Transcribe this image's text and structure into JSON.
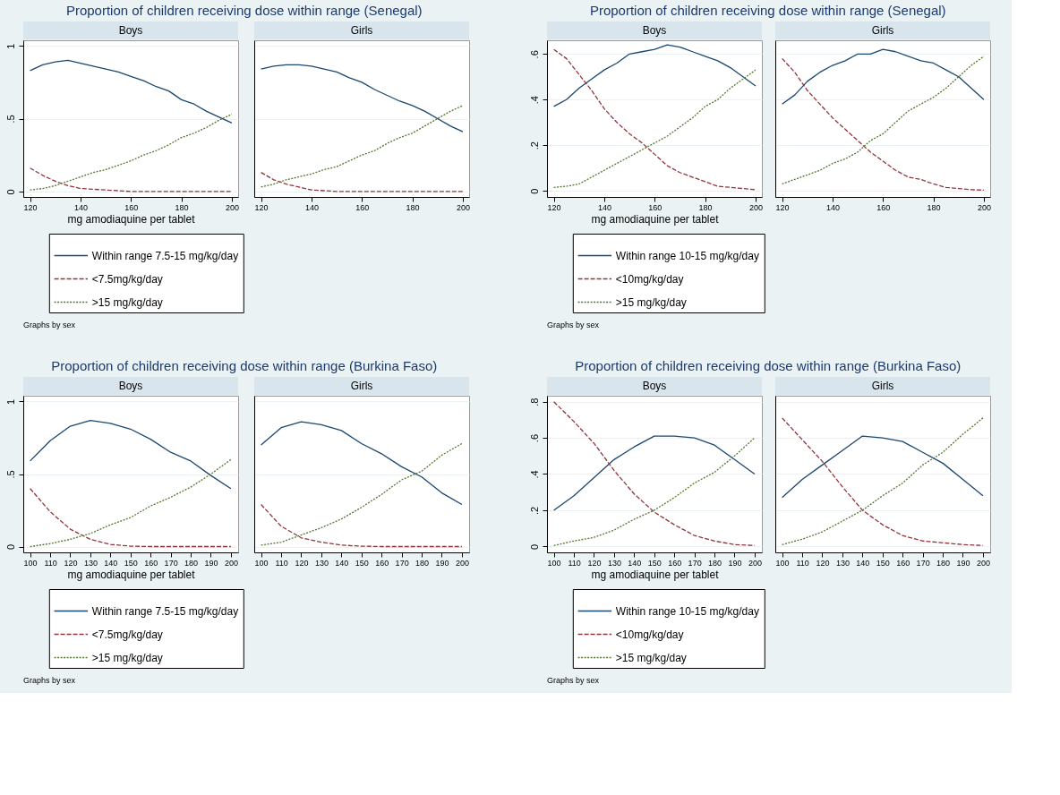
{
  "chart_data": [
    {
      "type": "line",
      "title": "Proportion of children receiving dose within range (Senegal)",
      "subtitle": "Boys",
      "xlabel": "mg amodiaquine per tablet",
      "annotations": [
        "Graphs by sex"
      ],
      "legend": "bottom",
      "grid": "y",
      "xlim": [
        117.3,
        202.5
      ],
      "xticks": [
        120,
        140,
        160,
        180,
        200
      ],
      "ylim": [
        -0.038,
        1.038
      ],
      "yticks": [
        0,
        {
          "value": 0.5,
          "label": ".5"
        },
        1
      ],
      "x": [
        120,
        125,
        130,
        135,
        140,
        145,
        150,
        155,
        160,
        165,
        170,
        175,
        180,
        185,
        190,
        195,
        200
      ],
      "series": [
        {
          "name": "Within range 7.5-15 mg/kg/day",
          "color": "#1a476f",
          "line_style": "solid",
          "values": [
            0.83,
            0.87,
            0.89,
            0.9,
            0.88,
            0.86,
            0.84,
            0.82,
            0.79,
            0.76,
            0.72,
            0.69,
            0.63,
            0.6,
            0.55,
            0.51,
            0.47
          ]
        },
        {
          "name": "<7.5mg/kg/day",
          "color": "#90353b",
          "line_style": "dashed",
          "values": [
            0.16,
            0.11,
            0.07,
            0.04,
            0.02,
            0.015,
            0.01,
            0.005,
            0,
            0,
            0,
            0,
            0,
            0,
            0,
            0,
            0
          ]
        },
        {
          "name": ">15 mg/kg/day",
          "color": "#55752f",
          "line_style": "dotted",
          "values": [
            0.01,
            0.02,
            0.04,
            0.07,
            0.1,
            0.13,
            0.15,
            0.18,
            0.21,
            0.25,
            0.28,
            0.32,
            0.37,
            0.4,
            0.44,
            0.49,
            0.53
          ]
        }
      ]
    },
    {
      "type": "line",
      "subtitle": "Girls",
      "grid": "y",
      "tick_labels": "x",
      "xlim": [
        117.3,
        202.5
      ],
      "xticks": [
        120,
        140,
        160,
        180,
        200
      ],
      "ylim": [
        -0.038,
        1.038
      ],
      "yticks": [
        {
          "value": 0,
          "label": null
        },
        {
          "value": 0.5,
          "label": null
        },
        {
          "value": 1,
          "label": null
        }
      ],
      "x": [
        120,
        125,
        130,
        135,
        140,
        145,
        150,
        155,
        160,
        165,
        170,
        175,
        180,
        185,
        190,
        195,
        200
      ],
      "series": [
        {
          "color": "#1a476f",
          "line_style": "solid",
          "values": [
            0.84,
            0.86,
            0.87,
            0.87,
            0.86,
            0.84,
            0.82,
            0.78,
            0.75,
            0.7,
            0.66,
            0.62,
            0.59,
            0.55,
            0.5,
            0.45,
            0.41
          ]
        },
        {
          "color": "#90353b",
          "line_style": "dashed",
          "values": [
            0.13,
            0.08,
            0.05,
            0.03,
            0.01,
            0.005,
            0,
            0,
            0,
            0,
            0,
            0,
            0,
            0,
            0,
            0,
            0
          ]
        },
        {
          "color": "#55752f",
          "line_style": "dotted",
          "values": [
            0.03,
            0.05,
            0.08,
            0.1,
            0.12,
            0.15,
            0.17,
            0.21,
            0.25,
            0.28,
            0.33,
            0.37,
            0.4,
            0.45,
            0.5,
            0.55,
            0.59
          ]
        }
      ]
    },
    {
      "type": "line",
      "title": "Proportion of children receiving dose within range (Senegal)",
      "subtitle": "Boys",
      "xlabel": "mg amodiaquine per tablet",
      "annotations": [
        "Graphs by sex"
      ],
      "legend": "bottom",
      "grid": "y",
      "xlim": [
        117.3,
        202.5
      ],
      "xticks": [
        120,
        140,
        160,
        180,
        200
      ],
      "ylim": [
        -0.027,
        0.66
      ],
      "yticks": [
        0,
        {
          "value": 0.2,
          "label": ".2"
        },
        {
          "value": 0.4,
          "label": ".4"
        },
        {
          "value": 0.6,
          "label": ".6"
        }
      ],
      "x": [
        120,
        125,
        130,
        135,
        140,
        145,
        150,
        155,
        160,
        165,
        170,
        175,
        180,
        185,
        190,
        195,
        200
      ],
      "series": [
        {
          "name": "Within range 10-15 mg/kg/day",
          "color": "#1a476f",
          "line_style": "solid",
          "values": [
            0.37,
            0.4,
            0.45,
            0.49,
            0.53,
            0.56,
            0.6,
            0.61,
            0.62,
            0.64,
            0.63,
            0.61,
            0.59,
            0.57,
            0.54,
            0.5,
            0.46
          ]
        },
        {
          "name": "<10mg/kg/day",
          "color": "#90353b",
          "line_style": "dashed",
          "values": [
            0.62,
            0.58,
            0.51,
            0.44,
            0.36,
            0.3,
            0.25,
            0.21,
            0.16,
            0.11,
            0.08,
            0.06,
            0.04,
            0.02,
            0.015,
            0.01,
            0.005
          ]
        },
        {
          "name": ">15 mg/kg/day",
          "color": "#55752f",
          "line_style": "dotted",
          "values": [
            0.015,
            0.02,
            0.03,
            0.06,
            0.09,
            0.12,
            0.15,
            0.18,
            0.21,
            0.24,
            0.28,
            0.32,
            0.37,
            0.4,
            0.45,
            0.49,
            0.53
          ]
        }
      ]
    },
    {
      "type": "line",
      "subtitle": "Girls",
      "grid": "y",
      "tick_labels": "x",
      "xlim": [
        117.3,
        202.5
      ],
      "xticks": [
        120,
        140,
        160,
        180,
        200
      ],
      "ylim": [
        -0.027,
        0.66
      ],
      "yticks": [
        {
          "value": 0,
          "label": null
        },
        {
          "value": 0.2,
          "label": null
        },
        {
          "value": 0.4,
          "label": null
        },
        {
          "value": 0.6,
          "label": null
        }
      ],
      "x": [
        120,
        125,
        130,
        135,
        140,
        145,
        150,
        155,
        160,
        165,
        170,
        175,
        180,
        185,
        190,
        195,
        200
      ],
      "series": [
        {
          "color": "#1a476f",
          "line_style": "solid",
          "values": [
            0.38,
            0.42,
            0.48,
            0.52,
            0.55,
            0.57,
            0.6,
            0.6,
            0.62,
            0.61,
            0.59,
            0.57,
            0.56,
            0.53,
            0.5,
            0.45,
            0.4
          ]
        },
        {
          "color": "#90353b",
          "line_style": "dashed",
          "values": [
            0.58,
            0.52,
            0.44,
            0.38,
            0.32,
            0.27,
            0.22,
            0.17,
            0.13,
            0.09,
            0.06,
            0.05,
            0.03,
            0.015,
            0.01,
            0.005,
            0.003
          ]
        },
        {
          "color": "#55752f",
          "line_style": "dotted",
          "values": [
            0.03,
            0.05,
            0.07,
            0.09,
            0.12,
            0.14,
            0.17,
            0.22,
            0.25,
            0.3,
            0.35,
            0.38,
            0.41,
            0.45,
            0.5,
            0.55,
            0.59
          ]
        }
      ]
    },
    {
      "type": "line",
      "title": "Proportion of children receiving dose within range (Burkina Faso)",
      "subtitle": "Boys",
      "xlabel": "mg amodiaquine per tablet",
      "annotations": [
        "Graphs by sex"
      ],
      "legend": "bottom",
      "grid": "y",
      "xlim": [
        96.6,
        203.6
      ],
      "xticks": [
        100,
        110,
        120,
        130,
        140,
        150,
        160,
        170,
        180,
        190,
        200
      ],
      "ylim": [
        -0.04,
        1.04
      ],
      "yticks": [
        0,
        {
          "value": 0.5,
          "label": ".5"
        },
        1
      ],
      "x": [
        100,
        110,
        120,
        130,
        140,
        150,
        160,
        170,
        180,
        190,
        200
      ],
      "series": [
        {
          "name": "Within range 7.5-15 mg/kg/day",
          "color": "#1a476f",
          "line_style": "solid",
          "values": [
            0.59,
            0.73,
            0.83,
            0.87,
            0.85,
            0.81,
            0.74,
            0.65,
            0.59,
            0.49,
            0.4
          ]
        },
        {
          "name": "<7.5mg/kg/day",
          "color": "#90353b",
          "line_style": "dashed",
          "values": [
            0.4,
            0.24,
            0.12,
            0.05,
            0.015,
            0.003,
            0,
            0,
            0,
            0,
            0
          ]
        },
        {
          "name": ">15 mg/kg/day",
          "color": "#55752f",
          "line_style": "dotted",
          "values": [
            0,
            0.02,
            0.05,
            0.09,
            0.15,
            0.2,
            0.28,
            0.34,
            0.41,
            0.5,
            0.6
          ]
        }
      ]
    },
    {
      "type": "line",
      "subtitle": "Girls",
      "grid": "y",
      "tick_labels": "x",
      "xlim": [
        96.6,
        203.6
      ],
      "xticks": [
        100,
        110,
        120,
        130,
        140,
        150,
        160,
        170,
        180,
        190,
        200
      ],
      "ylim": [
        -0.04,
        1.04
      ],
      "yticks": [
        {
          "value": 0,
          "label": null
        },
        {
          "value": 0.5,
          "label": null
        },
        {
          "value": 1,
          "label": null
        }
      ],
      "x": [
        100,
        110,
        120,
        130,
        140,
        150,
        160,
        170,
        180,
        190,
        200
      ],
      "series": [
        {
          "color": "#1a476f",
          "line_style": "solid",
          "values": [
            0.7,
            0.82,
            0.86,
            0.84,
            0.8,
            0.71,
            0.64,
            0.55,
            0.48,
            0.37,
            0.29
          ]
        },
        {
          "color": "#90353b",
          "line_style": "dashed",
          "values": [
            0.29,
            0.14,
            0.06,
            0.03,
            0.01,
            0.003,
            0,
            0,
            0,
            0,
            0
          ]
        },
        {
          "color": "#55752f",
          "line_style": "dotted",
          "values": [
            0.01,
            0.03,
            0.08,
            0.13,
            0.19,
            0.27,
            0.36,
            0.46,
            0.52,
            0.63,
            0.71
          ]
        }
      ]
    },
    {
      "type": "line",
      "title": "Proportion of children receiving dose within range (Burkina Faso)",
      "subtitle": "Boys",
      "xlabel": "mg amodiaquine per tablet",
      "annotations": [
        "Graphs by sex"
      ],
      "legend": "bottom",
      "grid": "y",
      "xlim": [
        96.6,
        203.6
      ],
      "xticks": [
        100,
        110,
        120,
        130,
        140,
        150,
        160,
        170,
        180,
        190,
        200
      ],
      "ylim": [
        -0.033,
        0.833
      ],
      "yticks": [
        0,
        {
          "value": 0.2,
          "label": ".2"
        },
        {
          "value": 0.4,
          "label": ".4"
        },
        {
          "value": 0.6,
          "label": ".6"
        },
        {
          "value": 0.8,
          "label": ".8"
        }
      ],
      "x": [
        100,
        110,
        120,
        130,
        140,
        150,
        160,
        170,
        180,
        190,
        200
      ],
      "series": [
        {
          "name": "Within range 10-15 mg/kg/day",
          "color": "#1a476f",
          "line_style": "solid",
          "values": [
            0.2,
            0.28,
            0.38,
            0.48,
            0.55,
            0.61,
            0.61,
            0.6,
            0.56,
            0.48,
            0.4
          ]
        },
        {
          "name": "<10mg/kg/day",
          "color": "#90353b",
          "line_style": "dashed",
          "values": [
            0.8,
            0.69,
            0.57,
            0.42,
            0.29,
            0.19,
            0.12,
            0.06,
            0.03,
            0.01,
            0.005
          ]
        },
        {
          "name": ">15 mg/kg/day",
          "color": "#55752f",
          "line_style": "dotted",
          "values": [
            0.005,
            0.03,
            0.05,
            0.09,
            0.15,
            0.2,
            0.27,
            0.35,
            0.41,
            0.5,
            0.6
          ]
        }
      ]
    },
    {
      "type": "line",
      "subtitle": "Girls",
      "grid": "y",
      "tick_labels": "x",
      "xlim": [
        96.6,
        203.6
      ],
      "xticks": [
        100,
        110,
        120,
        130,
        140,
        150,
        160,
        170,
        180,
        190,
        200
      ],
      "ylim": [
        -0.033,
        0.833
      ],
      "yticks": [
        {
          "value": 0,
          "label": null
        },
        {
          "value": 0.2,
          "label": null
        },
        {
          "value": 0.4,
          "label": null
        },
        {
          "value": 0.6,
          "label": null
        },
        {
          "value": 0.8,
          "label": null
        }
      ],
      "x": [
        100,
        110,
        120,
        130,
        140,
        150,
        160,
        170,
        180,
        190,
        200
      ],
      "series": [
        {
          "color": "#1a476f",
          "line_style": "solid",
          "values": [
            0.27,
            0.37,
            0.45,
            0.53,
            0.61,
            0.6,
            0.58,
            0.52,
            0.46,
            0.37,
            0.28
          ]
        },
        {
          "color": "#90353b",
          "line_style": "dashed",
          "values": [
            0.71,
            0.59,
            0.47,
            0.33,
            0.2,
            0.12,
            0.06,
            0.03,
            0.02,
            0.01,
            0.005
          ]
        },
        {
          "color": "#55752f",
          "line_style": "dotted",
          "values": [
            0.01,
            0.04,
            0.08,
            0.14,
            0.2,
            0.28,
            0.35,
            0.45,
            0.52,
            0.62,
            0.71
          ]
        }
      ]
    }
  ]
}
